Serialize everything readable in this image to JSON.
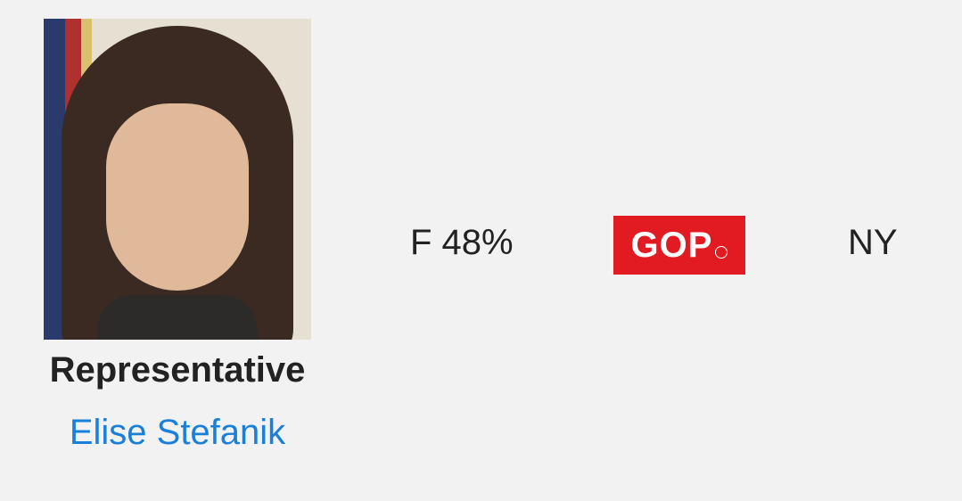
{
  "member": {
    "title": "Representative",
    "name": "Elise Stefanik",
    "score": "F 48%",
    "party": "GOP",
    "state": "NY",
    "party_color": "#e21b23",
    "link_color": "#1a7fd8"
  }
}
